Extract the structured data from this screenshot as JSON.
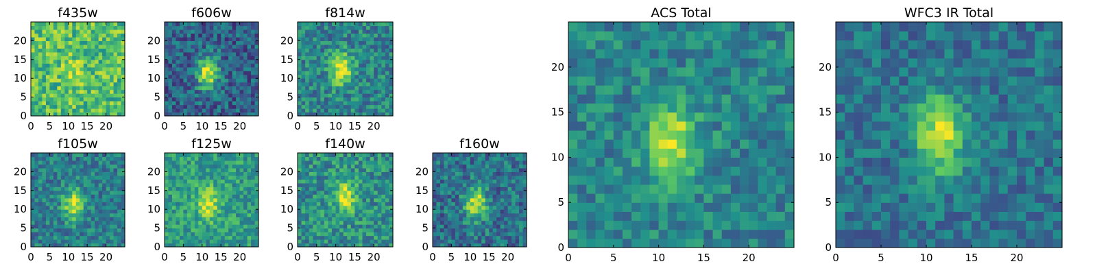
{
  "chart_data": [
    {
      "type": "heatmap",
      "title": "f435w",
      "x_ticks": [
        "0",
        "5",
        "10",
        "15",
        "20"
      ],
      "y_ticks": [
        "0",
        "5",
        "10",
        "15",
        "20"
      ],
      "xlim": [
        0,
        25
      ],
      "ylim": [
        0,
        25
      ],
      "grid": [
        25,
        25
      ],
      "peak": [
        11,
        11
      ],
      "peak_strength": 0.15,
      "noise": 0.22,
      "base": 0.7,
      "seed": 11
    },
    {
      "type": "heatmap",
      "title": "f606w",
      "x_ticks": [
        "0",
        "5",
        "10",
        "15",
        "20"
      ],
      "y_ticks": [
        "0",
        "5",
        "10",
        "15",
        "20"
      ],
      "xlim": [
        0,
        25
      ],
      "ylim": [
        0,
        25
      ],
      "grid": [
        25,
        25
      ],
      "peak": [
        11,
        11
      ],
      "peak_strength": 0.65,
      "noise": 0.2,
      "base": 0.32,
      "seed": 23
    },
    {
      "type": "heatmap",
      "title": "f814w",
      "x_ticks": [
        "0",
        "5",
        "10",
        "15",
        "20"
      ],
      "y_ticks": [
        "0",
        "5",
        "10",
        "15",
        "20"
      ],
      "xlim": [
        0,
        25
      ],
      "ylim": [
        0,
        25
      ],
      "grid": [
        25,
        25
      ],
      "peak": [
        11,
        12
      ],
      "peak_strength": 0.55,
      "noise": 0.2,
      "base": 0.45,
      "seed": 37
    },
    {
      "type": "heatmap",
      "title": "f105w",
      "x_ticks": [
        "0",
        "5",
        "10",
        "15",
        "20"
      ],
      "y_ticks": [
        "0",
        "5",
        "10",
        "15",
        "20"
      ],
      "xlim": [
        0,
        25
      ],
      "ylim": [
        0,
        25
      ],
      "grid": [
        25,
        25
      ],
      "peak": [
        11,
        11
      ],
      "peak_strength": 0.5,
      "noise": 0.18,
      "base": 0.42,
      "seed": 41
    },
    {
      "type": "heatmap",
      "title": "f125w",
      "x_ticks": [
        "0",
        "5",
        "10",
        "15",
        "20"
      ],
      "y_ticks": [
        "0",
        "5",
        "10",
        "15",
        "20"
      ],
      "xlim": [
        0,
        25
      ],
      "ylim": [
        0,
        25
      ],
      "grid": [
        25,
        25
      ],
      "peak": [
        11,
        11
      ],
      "peak_strength": 0.4,
      "noise": 0.18,
      "base": 0.55,
      "seed": 53
    },
    {
      "type": "heatmap",
      "title": "f140w",
      "x_ticks": [
        "0",
        "5",
        "10",
        "15",
        "20"
      ],
      "y_ticks": [
        "0",
        "5",
        "10",
        "15",
        "20"
      ],
      "xlim": [
        0,
        25
      ],
      "ylim": [
        0,
        25
      ],
      "grid": [
        25,
        25
      ],
      "peak": [
        12,
        13
      ],
      "peak_strength": 0.45,
      "noise": 0.2,
      "base": 0.5,
      "seed": 67
    },
    {
      "type": "heatmap",
      "title": "f160w",
      "x_ticks": [
        "0",
        "5",
        "10",
        "15",
        "20"
      ],
      "y_ticks": [
        "0",
        "5",
        "10",
        "15",
        "20"
      ],
      "xlim": [
        0,
        25
      ],
      "ylim": [
        0,
        25
      ],
      "grid": [
        25,
        25
      ],
      "peak": [
        11,
        11
      ],
      "peak_strength": 0.55,
      "noise": 0.2,
      "base": 0.38,
      "seed": 79
    },
    {
      "type": "heatmap",
      "title": "ACS Total",
      "x_ticks": [
        "0",
        "5",
        "10",
        "15",
        "20"
      ],
      "y_ticks": [
        "0",
        "5",
        "10",
        "15",
        "20"
      ],
      "xlim": [
        0,
        25
      ],
      "ylim": [
        0,
        25
      ],
      "grid": [
        25,
        25
      ],
      "peak": [
        11,
        11
      ],
      "peak_strength": 0.5,
      "noise": 0.16,
      "base": 0.45,
      "seed": 83
    },
    {
      "type": "heatmap",
      "title": "WFC3 IR Total",
      "x_ticks": [
        "0",
        "5",
        "10",
        "15",
        "20"
      ],
      "y_ticks": [
        "0",
        "5",
        "10",
        "15",
        "20"
      ],
      "xlim": [
        0,
        25
      ],
      "ylim": [
        0,
        25
      ],
      "grid": [
        25,
        25
      ],
      "peak": [
        11,
        12
      ],
      "peak_strength": 0.55,
      "noise": 0.15,
      "base": 0.38,
      "seed": 97
    }
  ],
  "colormap": [
    "#440154",
    "#3b528b",
    "#21918c",
    "#5ec962",
    "#fde725"
  ]
}
